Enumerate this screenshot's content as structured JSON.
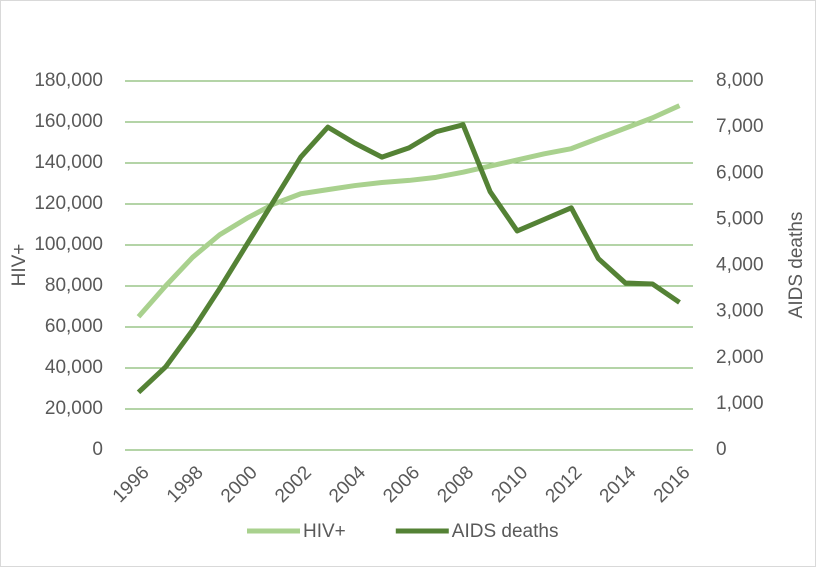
{
  "chart_data": {
    "type": "line",
    "x": [
      1996,
      1997,
      1998,
      1999,
      2000,
      2001,
      2002,
      2003,
      2004,
      2005,
      2006,
      2007,
      2008,
      2009,
      2010,
      2011,
      2012,
      2013,
      2014,
      2015,
      2016
    ],
    "xlim": [
      1995.5,
      2016.5
    ],
    "xticks": [
      1996,
      1998,
      2000,
      2002,
      2004,
      2006,
      2008,
      2010,
      2012,
      2014,
      2016
    ],
    "ylabel": "HIV+",
    "y2label": "AIDS deaths",
    "ylim": [
      0,
      180000
    ],
    "yticks": [
      0,
      {
        "value": 20000,
        "label": "20,000"
      },
      {
        "value": 40000,
        "label": "40,000"
      },
      {
        "value": 60000,
        "label": "60,000"
      },
      {
        "value": 80000,
        "label": "80,000"
      },
      {
        "value": 100000,
        "label": "100,000"
      },
      {
        "value": 120000,
        "label": "120,000"
      },
      {
        "value": 140000,
        "label": "140,000"
      },
      {
        "value": 160000,
        "label": "160,000"
      },
      {
        "value": 180000,
        "label": "180,000"
      }
    ],
    "y2lim": [
      0,
      8000
    ],
    "y2ticks": [
      0,
      {
        "value": 1000,
        "label": "1,000"
      },
      {
        "value": 2000,
        "label": "2,000"
      },
      {
        "value": 3000,
        "label": "3,000"
      },
      {
        "value": 4000,
        "label": "4,000"
      },
      {
        "value": 5000,
        "label": "5,000"
      },
      {
        "value": 6000,
        "label": "6,000"
      },
      {
        "value": 7000,
        "label": "7,000"
      },
      {
        "value": 8000,
        "label": "8,000"
      }
    ],
    "grid": true,
    "legend": "bottom",
    "series": [
      {
        "name": "HIV+",
        "color": "#a9d18e",
        "values": [
          65000,
          80000,
          94000,
          105000,
          113000,
          120000,
          125000,
          127000,
          129000,
          130500,
          131500,
          133000,
          135500,
          138500,
          141500,
          144500,
          147000,
          152000,
          157000,
          162000,
          168000
        ]
      },
      {
        "name": "AIDS deaths",
        "color": "#548235",
        "axis": "y2",
        "values": [
          1250,
          1800,
          2600,
          3500,
          4450,
          5400,
          6350,
          7000,
          6650,
          6350,
          6550,
          6900,
          7050,
          5600,
          4750,
          5000,
          5250,
          4150,
          3620,
          3600,
          3200
        ]
      }
    ]
  }
}
